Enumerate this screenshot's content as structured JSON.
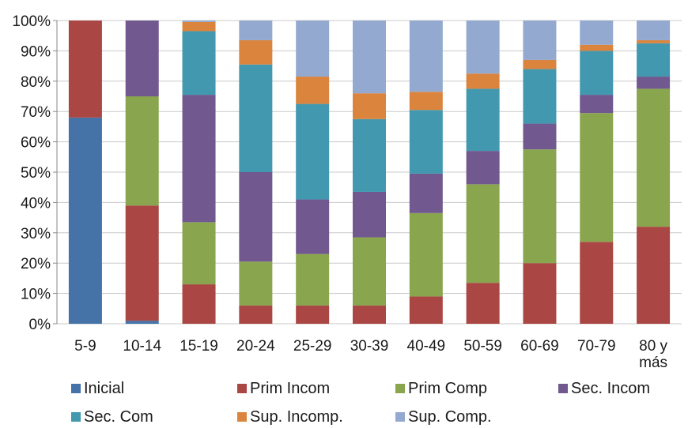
{
  "chart_data": {
    "type": "bar",
    "stacked": true,
    "percent": true,
    "title": "",
    "xlabel": "",
    "ylabel": "",
    "ylim": [
      0,
      100
    ],
    "yticks": [
      "0%",
      "10%",
      "20%",
      "30%",
      "40%",
      "50%",
      "60%",
      "70%",
      "80%",
      "90%",
      "100%"
    ],
    "grid": true,
    "legend": "bottom",
    "categories": [
      [
        "5-9"
      ],
      [
        "10-14"
      ],
      [
        "15-19"
      ],
      [
        "20-24"
      ],
      [
        "25-29"
      ],
      [
        "30-39"
      ],
      [
        "40-49"
      ],
      [
        "50-59"
      ],
      [
        "60-69"
      ],
      [
        "70-79"
      ],
      [
        "80 y",
        "más"
      ]
    ],
    "series": [
      {
        "name": "Inicial",
        "color": "#4572A7",
        "values": [
          68,
          1,
          0,
          0,
          0,
          0,
          0,
          0,
          0,
          0,
          0
        ]
      },
      {
        "name": "Prim Incom",
        "color": "#AA4643",
        "values": [
          32,
          38,
          13,
          6,
          6,
          6,
          9,
          13.5,
          20,
          27,
          32
        ]
      },
      {
        "name": "Prim Comp",
        "color": "#89A54E",
        "values": [
          0,
          36,
          20.5,
          14.5,
          17,
          22.5,
          27.5,
          32.5,
          37.5,
          42.5,
          45.5
        ]
      },
      {
        "name": "Sec. Incom",
        "color": "#71588F",
        "values": [
          0,
          25,
          42,
          29.5,
          18,
          15,
          13,
          11,
          8.5,
          6,
          4
        ]
      },
      {
        "name": "Sec. Com",
        "color": "#4198AF",
        "values": [
          0,
          0,
          21,
          35.5,
          31.5,
          24,
          21,
          20.5,
          18,
          14.5,
          11
        ]
      },
      {
        "name": "Sup. Incomp.",
        "color": "#DB843D",
        "values": [
          0,
          0,
          3,
          8,
          9,
          8.5,
          6,
          5,
          3,
          2,
          1
        ]
      },
      {
        "name": "Sup. Comp.",
        "color": "#93A9CF",
        "values": [
          0,
          0,
          0.5,
          6.5,
          18.5,
          24,
          23.5,
          17.5,
          13,
          8,
          6.5
        ]
      }
    ]
  }
}
